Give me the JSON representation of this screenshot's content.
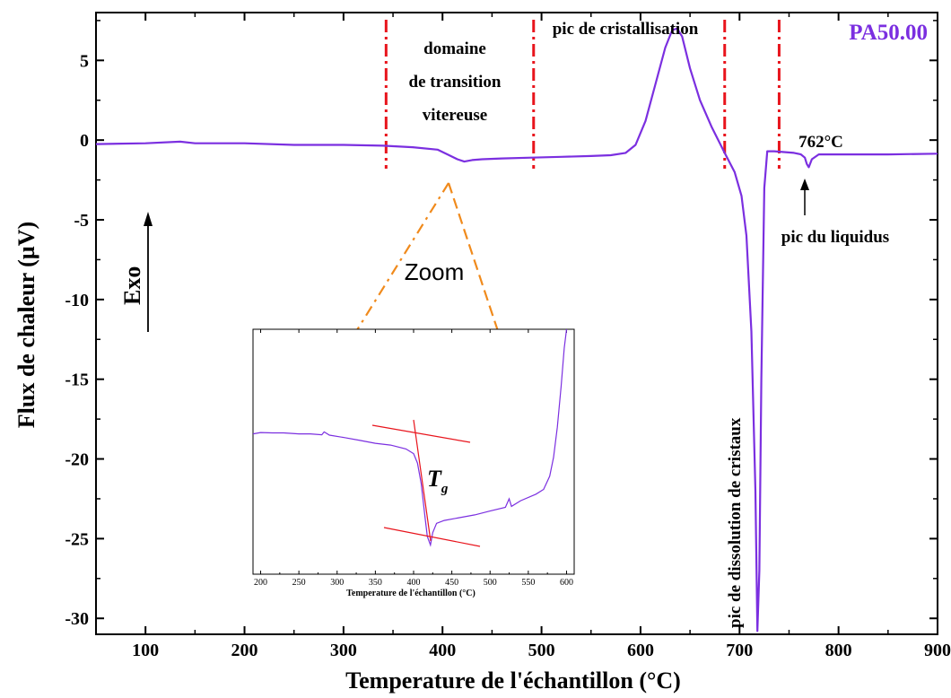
{
  "chart_data": {
    "type": "line",
    "xlabel": "Temperature de l'échantillon (°C)",
    "ylabel": "Flux de chaleur (µV)",
    "xlim": [
      50,
      900
    ],
    "ylim": [
      -31,
      8
    ],
    "x_ticks": [
      100,
      200,
      300,
      400,
      500,
      600,
      700,
      800,
      900
    ],
    "y_ticks": [
      5,
      0,
      -5,
      -10,
      -15,
      -20,
      -25,
      -30
    ],
    "grid": false,
    "series": [
      {
        "name": "PA50.00",
        "color": "#7b2fe0",
        "x": [
          50,
          100,
          135,
          150,
          200,
          250,
          300,
          340,
          370,
          395,
          405,
          415,
          422,
          430,
          440,
          460,
          490,
          520,
          550,
          570,
          585,
          595,
          605,
          615,
          625,
          632,
          637,
          642,
          650,
          660,
          672,
          685,
          695,
          702,
          707,
          712,
          716,
          718,
          720,
          722,
          725,
          728,
          735,
          745,
          755,
          762,
          766,
          768,
          770,
          773,
          780,
          800,
          850,
          900
        ],
        "y": [
          -0.25,
          -0.2,
          -0.1,
          -0.2,
          -0.2,
          -0.3,
          -0.3,
          -0.35,
          -0.45,
          -0.6,
          -0.9,
          -1.2,
          -1.35,
          -1.25,
          -1.2,
          -1.15,
          -1.1,
          -1.05,
          -1.0,
          -0.95,
          -0.8,
          -0.3,
          1.2,
          3.5,
          5.8,
          6.9,
          7.0,
          6.5,
          4.5,
          2.5,
          0.8,
          -0.8,
          -2.0,
          -3.5,
          -6.0,
          -12.0,
          -22.0,
          -30.8,
          -27.0,
          -15.0,
          -3.0,
          -0.7,
          -0.7,
          -0.75,
          -0.8,
          -0.9,
          -1.1,
          -1.5,
          -1.7,
          -1.2,
          -0.9,
          -0.9,
          -0.9,
          -0.85
        ]
      }
    ],
    "vlines_x": [
      343,
      492,
      685,
      740
    ],
    "annotations": {
      "sample": "PA50.00",
      "glass_l1": "domaine",
      "glass_l2": "de transition",
      "glass_l3": "vitereuse",
      "cryst": "pic de cristallisation",
      "liq_temp": "762°C",
      "liquidus": "pic du liquidus",
      "dissolution": "pic de dissolution de cristaux",
      "exo": "Exo",
      "zoom": "Zoom",
      "tg_main": "T",
      "tg_sub": "g"
    },
    "inset": {
      "xlabel": "Temperature de l'échantillon (°C)",
      "xlim": [
        190,
        610
      ],
      "x_ticks": [
        200,
        250,
        300,
        350,
        400,
        450,
        500,
        550,
        600
      ],
      "x": [
        190,
        200,
        215,
        230,
        250,
        265,
        280,
        283,
        290,
        310,
        330,
        350,
        370,
        390,
        400,
        405,
        410,
        415,
        418,
        422,
        425,
        430,
        440,
        460,
        480,
        500,
        520,
        525,
        528,
        540,
        560,
        570,
        578,
        583,
        588,
        593,
        597,
        600
      ],
      "y": [
        -1.55,
        -1.48,
        -1.5,
        -1.5,
        -1.55,
        -1.55,
        -1.6,
        -1.45,
        -1.62,
        -1.75,
        -1.9,
        -2.05,
        -2.15,
        -2.35,
        -2.6,
        -3.1,
        -4.2,
        -6.0,
        -7.0,
        -7.45,
        -6.8,
        -6.3,
        -6.15,
        -6.0,
        -5.85,
        -5.65,
        -5.45,
        -5.0,
        -5.4,
        -5.1,
        -4.75,
        -4.5,
        -3.8,
        -2.8,
        -1.2,
        1.0,
        3.0,
        4.0
      ],
      "ylim": [
        -9,
        4
      ]
    }
  }
}
